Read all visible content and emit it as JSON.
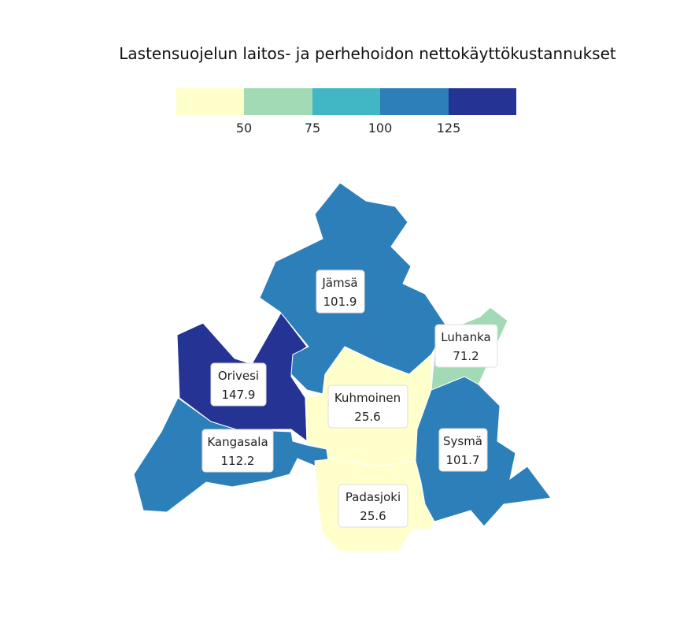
{
  "title": "Lastensuojelun laitos- ja perhehoidon nettokäyttökustannukset",
  "legend": {
    "colors": [
      "#ffffcc",
      "#a1dab4",
      "#41b6c4",
      "#2c7fb8",
      "#253494"
    ],
    "ticks": [
      "50",
      "75",
      "100",
      "125"
    ]
  },
  "regions": [
    {
      "name": "Jämsä",
      "value": "101.9",
      "color": "#2c7fb8"
    },
    {
      "name": "Orivesi",
      "value": "147.9",
      "color": "#253494"
    },
    {
      "name": "Kangasala",
      "value": "112.2",
      "color": "#2c7fb8"
    },
    {
      "name": "Kuhmoinen",
      "value": "25.6",
      "color": "#ffffcc"
    },
    {
      "name": "Padasjoki",
      "value": "25.6",
      "color": "#ffffcc"
    },
    {
      "name": "Luhanka",
      "value": "71.2",
      "color": "#a1dab4"
    },
    {
      "name": "Sysmä",
      "value": "101.7",
      "color": "#2c7fb8"
    }
  ]
}
